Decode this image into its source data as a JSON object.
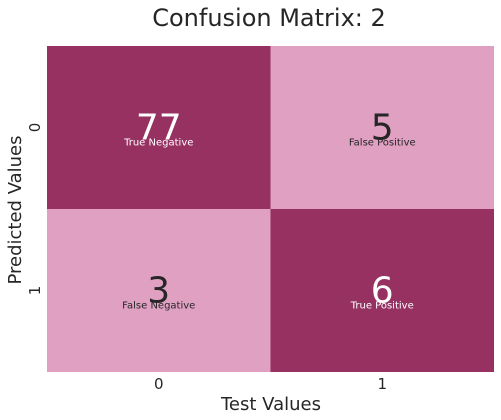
{
  "chart_data": {
    "type": "heatmap",
    "title": "Confusion Matrix: 2",
    "xlabel": "Test Values",
    "ylabel": "Predicted Values",
    "x_ticks": [
      "0",
      "1"
    ],
    "y_ticks": [
      "0",
      "1"
    ],
    "values": [
      [
        77,
        5
      ],
      [
        3,
        6
      ]
    ],
    "cell_labels": [
      [
        "True Negative",
        "False Positive"
      ],
      [
        "False Negative",
        "True Positive"
      ]
    ],
    "colors": {
      "diagonal": "#963162",
      "off_diagonal": "#dfa0c2",
      "text_on_dark": "#ffffff",
      "text_on_light": "#262626",
      "axis_text": "#262626"
    }
  }
}
